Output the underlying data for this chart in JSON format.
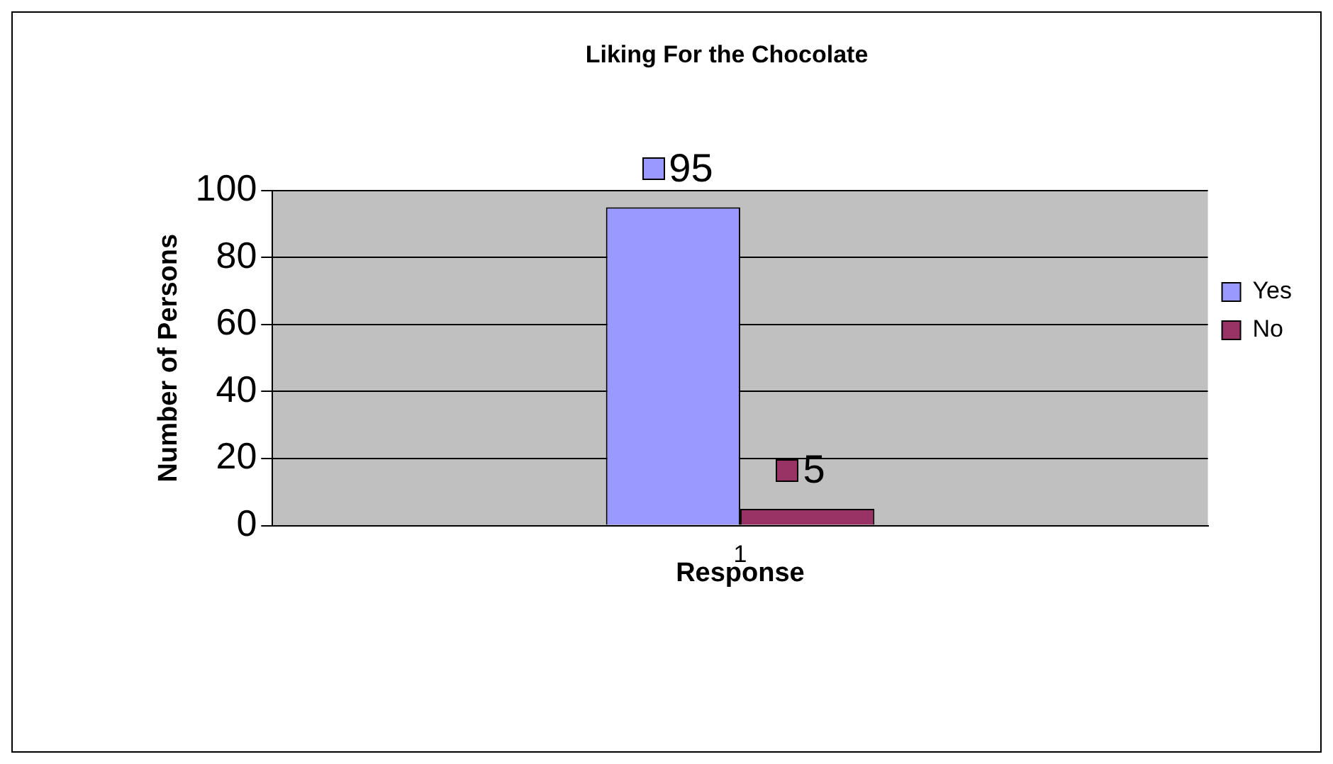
{
  "chart_data": {
    "type": "bar",
    "title": "Liking For the Chocolate",
    "xlabel": "Response",
    "ylabel": "Number of Persons",
    "categories": [
      "1"
    ],
    "series": [
      {
        "name": "Yes",
        "color": "#9999ff",
        "values": [
          95
        ]
      },
      {
        "name": "No",
        "color": "#993366",
        "values": [
          5
        ]
      }
    ],
    "ylim": [
      0,
      100
    ],
    "yticks": [
      0,
      20,
      40,
      60,
      80,
      100
    ],
    "grid": "y",
    "legend": "right",
    "data_labels": true
  }
}
